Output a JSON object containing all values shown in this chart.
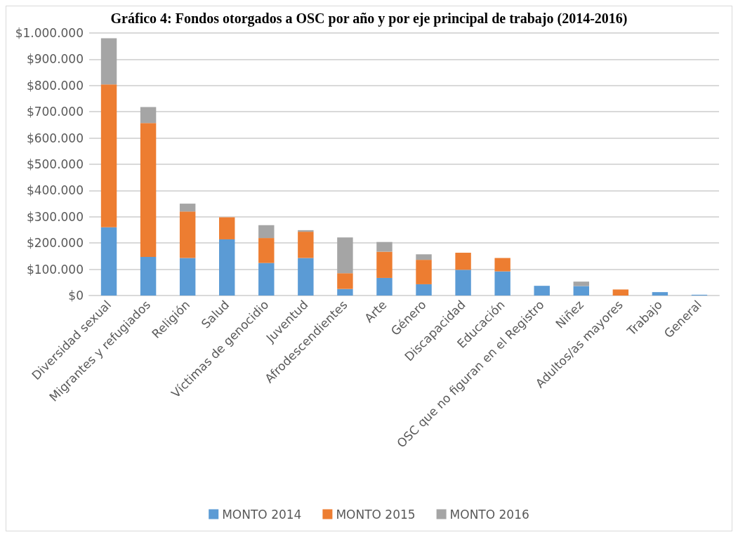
{
  "chart_data": {
    "type": "bar",
    "title": "Gráfico 4: Fondos otorgados a OSC por año y por eje principal de trabajo (2014-2016)",
    "categories": [
      "Diversidad sexual",
      "Migrantes y refugiados",
      "Religión",
      "Salud",
      "Víctimas de genocidio",
      "Juventud",
      "Afrodescendientes",
      "Arte",
      "Género",
      "Discapacidad",
      "Educación",
      "OSC que no figuran en el Registro",
      "Niñez",
      "Adultos/as mayores",
      "Trabajo",
      "General"
    ],
    "stacked": true,
    "series": [
      {
        "name": "MONTO 2014",
        "color": "#5b9bd5",
        "values": [
          260000,
          147000,
          143000,
          214000,
          124000,
          143000,
          25000,
          67000,
          43000,
          98000,
          92000,
          37000,
          36000,
          0,
          13000,
          3000
        ]
      },
      {
        "name": "MONTO 2015",
        "color": "#ed7d31",
        "values": [
          544000,
          510000,
          177000,
          84000,
          95000,
          100000,
          60000,
          100000,
          93000,
          65000,
          51000,
          0,
          0,
          23000,
          0,
          0
        ]
      },
      {
        "name": "MONTO 2016",
        "color": "#a5a5a5",
        "values": [
          176000,
          61000,
          30000,
          0,
          49000,
          6000,
          136000,
          37000,
          21000,
          0,
          0,
          0,
          17000,
          0,
          0,
          0
        ]
      }
    ],
    "ylim": [
      0,
      1000000
    ],
    "yticks": [
      {
        "value": 0,
        "label": "$0"
      },
      {
        "value": 100000,
        "label": "$100.000"
      },
      {
        "value": 200000,
        "label": "$200.000"
      },
      {
        "value": 300000,
        "label": "$300.000"
      },
      {
        "value": 400000,
        "label": "$400.000"
      },
      {
        "value": 500000,
        "label": "$500.000"
      },
      {
        "value": 600000,
        "label": "$600.000"
      },
      {
        "value": 700000,
        "label": "$700.000"
      },
      {
        "value": 800000,
        "label": "$800.000"
      },
      {
        "value": 900000,
        "label": "$900.000"
      },
      {
        "value": 1000000,
        "label": "$1.000.000"
      }
    ],
    "grid": "y",
    "legend": "bottom"
  }
}
